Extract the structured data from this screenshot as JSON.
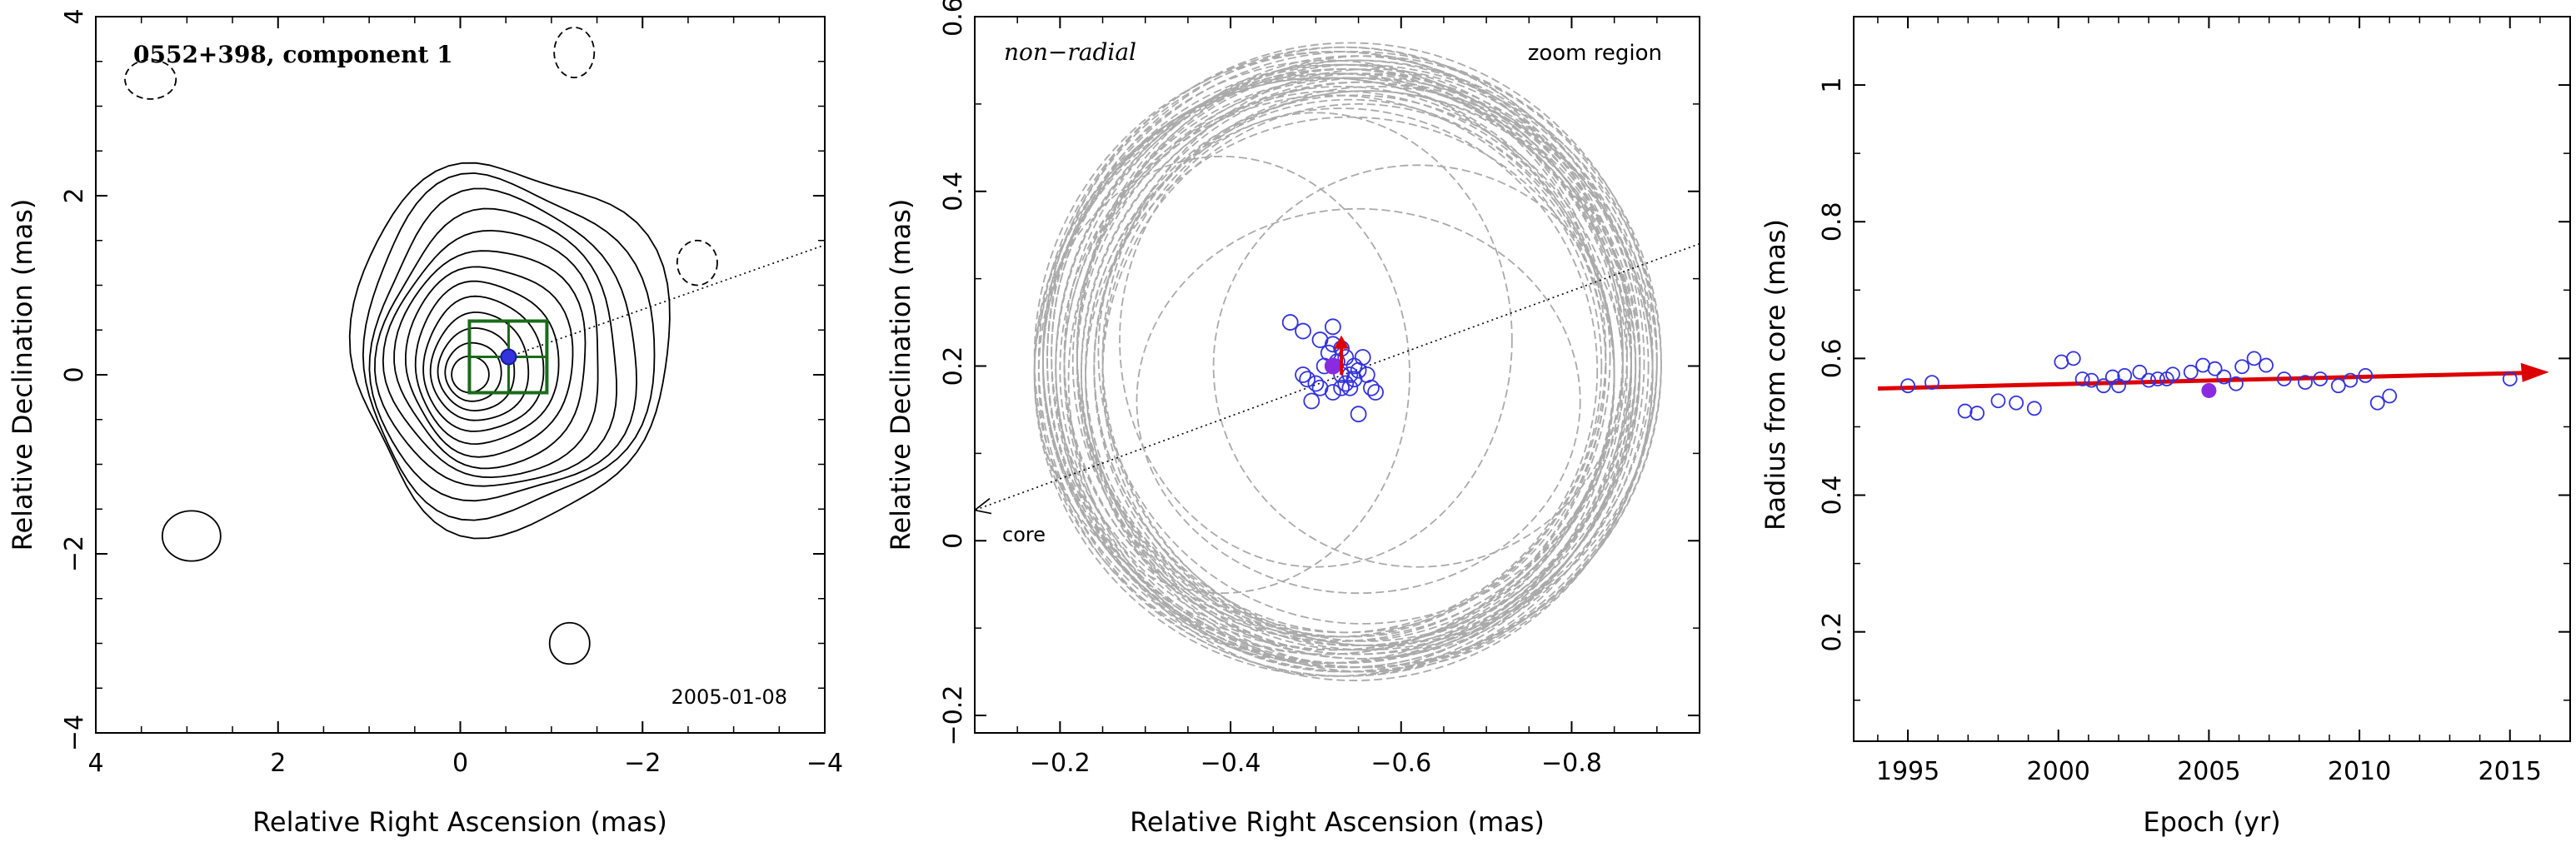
{
  "chart_data": [
    {
      "type": "contour",
      "title": "0552+398, component 1",
      "date": "2005-01-08",
      "xlabel": "Relative Right Ascension (mas)",
      "ylabel": "Relative Declination (mas)",
      "xlim": [
        4,
        -4
      ],
      "ylim": [
        -4,
        4
      ],
      "x_ticks": [
        4,
        2,
        0,
        -2,
        -4
      ],
      "y_ticks": [
        -4,
        -2,
        0,
        2,
        4
      ],
      "x_tick_labels": [
        "4",
        "2",
        "0",
        "−2",
        "−4"
      ],
      "y_tick_labels": [
        "−4",
        "−2",
        "0",
        "2",
        "4"
      ],
      "contour_center": [
        -0.1,
        0.0
      ],
      "contour_count": 13,
      "component_position": [
        -0.53,
        0.2
      ],
      "zoom_box": {
        "x": [
          -0.1,
          -0.95
        ],
        "y": [
          -0.2,
          0.6
        ]
      },
      "jet_direction_line": {
        "from": [
          -0.53,
          0.2
        ],
        "to": [
          -4.0,
          1.45
        ]
      },
      "negative_contours": [
        {
          "center": [
            3.4,
            3.3
          ],
          "r": [
            0.28,
            0.22
          ]
        },
        {
          "center": [
            -1.25,
            3.6
          ],
          "r": [
            0.22,
            0.28
          ]
        },
        {
          "center": [
            -2.6,
            1.25
          ],
          "r": [
            0.22,
            0.25
          ]
        }
      ],
      "positive_islands": [
        {
          "center": [
            2.95,
            -1.8
          ],
          "r": [
            0.32,
            0.28
          ]
        },
        {
          "center": [
            -1.2,
            -3.0
          ],
          "r": [
            0.22,
            0.23
          ]
        }
      ],
      "colors": {
        "contour": "#000000",
        "zoom_box": "#1a6b1a",
        "component": "#3333dd"
      }
    },
    {
      "type": "scatter",
      "annotation_left": "non−radial",
      "annotation_right": "zoom region",
      "core_label": "core",
      "xlabel": "Relative Right Ascension (mas)",
      "ylabel": "Relative Declination (mas)",
      "xlim": [
        -0.1,
        -0.95
      ],
      "ylim": [
        -0.22,
        0.6
      ],
      "x_ticks": [
        -0.2,
        -0.4,
        -0.6,
        -0.8
      ],
      "y_ticks": [
        -0.2,
        0,
        0.2,
        0.4,
        0.6
      ],
      "x_tick_labels": [
        "−0.2",
        "−0.4",
        "−0.6",
        "−0.8"
      ],
      "y_tick_labels": [
        "−0.2",
        "0",
        "0.2",
        "0.4",
        "0.6"
      ],
      "radial_line": {
        "from": [
          -0.95,
          0.34
        ],
        "to": [
          -0.1,
          0.035
        ]
      },
      "mean_position": [
        -0.52,
        0.2
      ],
      "velocity_vector": {
        "from": [
          -0.53,
          0.19
        ],
        "to": [
          -0.53,
          0.235
        ]
      },
      "positions": [
        [
          -0.47,
          0.25
        ],
        [
          -0.485,
          0.24
        ],
        [
          -0.505,
          0.23
        ],
        [
          -0.52,
          0.245
        ],
        [
          -0.52,
          0.225
        ],
        [
          -0.515,
          0.215
        ],
        [
          -0.53,
          0.22
        ],
        [
          -0.535,
          0.21
        ],
        [
          -0.555,
          0.21
        ],
        [
          -0.525,
          0.205
        ],
        [
          -0.53,
          0.19
        ],
        [
          -0.54,
          0.19
        ],
        [
          -0.545,
          0.185
        ],
        [
          -0.535,
          0.18
        ],
        [
          -0.52,
          0.2
        ],
        [
          -0.51,
          0.2
        ],
        [
          -0.49,
          0.185
        ],
        [
          -0.485,
          0.19
        ],
        [
          -0.5,
          0.18
        ],
        [
          -0.505,
          0.175
        ],
        [
          -0.495,
          0.16
        ],
        [
          -0.55,
          0.195
        ],
        [
          -0.56,
          0.19
        ],
        [
          -0.565,
          0.175
        ],
        [
          -0.57,
          0.17
        ],
        [
          -0.55,
          0.145
        ],
        [
          -0.52,
          0.17
        ],
        [
          -0.53,
          0.175
        ],
        [
          -0.545,
          0.2
        ],
        [
          -0.54,
          0.175
        ]
      ],
      "uncertainty_ellipses": [
        {
          "c": [
            -0.52,
            0.205
          ],
          "r": [
            0.34,
            0.33
          ]
        },
        {
          "c": [
            -0.53,
            0.2
          ],
          "r": [
            0.35,
            0.34
          ]
        },
        {
          "c": [
            -0.535,
            0.195
          ],
          "r": [
            0.33,
            0.335
          ]
        },
        {
          "c": [
            -0.545,
            0.19
          ],
          "r": [
            0.315,
            0.32
          ]
        },
        {
          "c": [
            -0.55,
            0.195
          ],
          "r": [
            0.325,
            0.33
          ]
        },
        {
          "c": [
            -0.525,
            0.21
          ],
          "r": [
            0.345,
            0.35
          ]
        },
        {
          "c": [
            -0.545,
            0.205
          ],
          "r": [
            0.36,
            0.355
          ]
        },
        {
          "c": [
            -0.56,
            0.2
          ],
          "r": [
            0.31,
            0.315
          ]
        },
        {
          "c": [
            -0.515,
            0.21
          ],
          "r": [
            0.33,
            0.34
          ]
        },
        {
          "c": [
            -0.54,
            0.215
          ],
          "r": [
            0.32,
            0.325
          ]
        },
        {
          "c": [
            -0.55,
            0.19
          ],
          "r": [
            0.3,
            0.31
          ]
        },
        {
          "c": [
            -0.535,
            0.2
          ],
          "r": [
            0.34,
            0.345
          ]
        },
        {
          "c": [
            -0.53,
            0.205
          ],
          "r": [
            0.355,
            0.36
          ]
        },
        {
          "c": [
            -0.56,
            0.195
          ],
          "r": [
            0.32,
            0.32
          ]
        },
        {
          "c": [
            -0.51,
            0.2
          ],
          "r": [
            0.33,
            0.33
          ]
        },
        {
          "c": [
            -0.54,
            0.185
          ],
          "r": [
            0.31,
            0.3
          ]
        },
        {
          "c": [
            -0.525,
            0.215
          ],
          "r": [
            0.335,
            0.33
          ]
        },
        {
          "c": [
            -0.565,
            0.21
          ],
          "r": [
            0.315,
            0.33
          ]
        },
        {
          "c": [
            -0.55,
            0.21
          ],
          "r": [
            0.345,
            0.34
          ]
        },
        {
          "c": [
            -0.52,
            0.19
          ],
          "r": [
            0.35,
            0.345
          ]
        },
        {
          "c": [
            -0.545,
            0.215
          ],
          "r": [
            0.325,
            0.34
          ]
        },
        {
          "c": [
            -0.535,
            0.19
          ],
          "r": [
            0.36,
            0.345
          ]
        },
        {
          "c": [
            -0.555,
            0.2
          ],
          "r": [
            0.335,
            0.335
          ]
        },
        {
          "c": [
            -0.53,
            0.215
          ],
          "r": [
            0.31,
            0.325
          ]
        },
        {
          "c": [
            -0.545,
            0.195
          ],
          "r": [
            0.35,
            0.355
          ]
        },
        {
          "c": [
            -0.52,
            0.2
          ],
          "r": [
            0.315,
            0.31
          ]
        },
        {
          "c": [
            -0.56,
            0.205
          ],
          "r": [
            0.34,
            0.35
          ]
        },
        {
          "c": [
            -0.54,
            0.2
          ],
          "r": [
            0.3,
            0.305
          ]
        },
        {
          "c": [
            -0.525,
            0.195
          ],
          "r": [
            0.325,
            0.32
          ]
        },
        {
          "c": [
            -0.55,
            0.2
          ],
          "r": [
            0.355,
            0.345
          ]
        },
        {
          "c": [
            -0.57,
            0.2
          ],
          "r": [
            0.33,
            0.32
          ]
        },
        {
          "c": [
            -0.535,
            0.21
          ],
          "r": [
            0.345,
            0.355
          ]
        },
        {
          "c": [
            -0.53,
            0.185
          ],
          "r": [
            0.32,
            0.335
          ]
        },
        {
          "c": [
            -0.555,
            0.215
          ],
          "r": [
            0.31,
            0.31
          ]
        },
        {
          "c": [
            -0.51,
            0.195
          ],
          "r": [
            0.34,
            0.335
          ]
        },
        {
          "c": [
            -0.545,
            0.205
          ],
          "r": [
            0.33,
            0.325
          ]
        },
        {
          "c": [
            -0.54,
            0.21
          ],
          "r": [
            0.36,
            0.36
          ]
        },
        {
          "c": [
            -0.56,
            0.19
          ],
          "r": [
            0.335,
            0.34
          ]
        },
        {
          "c": [
            -0.53,
            0.195
          ],
          "r": [
            0.3,
            0.3
          ]
        },
        {
          "c": [
            -0.52,
            0.21
          ],
          "r": [
            0.35,
            0.35
          ]
        },
        {
          "c": [
            -0.39,
            0.19
          ],
          "r": [
            0.22,
            0.25
          ]
        },
        {
          "c": [
            -0.62,
            0.2
          ],
          "r": [
            0.24,
            0.23
          ]
        },
        {
          "c": [
            -0.55,
            0.16
          ],
          "r": [
            0.26,
            0.22
          ]
        },
        {
          "c": [
            -0.5,
            0.23
          ],
          "r": [
            0.23,
            0.26
          ]
        }
      ],
      "colors": {
        "ellipse": "#aaaaaa",
        "points": "#3333dd",
        "mean": "#8a2be2",
        "vector": "#dd0000"
      }
    },
    {
      "type": "scatter",
      "xlabel": "Epoch (yr)",
      "ylabel": "Radius from core (mas)",
      "xlim": [
        1993.2,
        2017.0
      ],
      "ylim": [
        0.04,
        1.1
      ],
      "x_ticks": [
        1995,
        2000,
        2005,
        2010,
        2015
      ],
      "y_ticks": [
        0.2,
        0.4,
        0.6,
        0.8,
        1.0
      ],
      "x_tick_labels": [
        "1995",
        "2000",
        "2005",
        "2010",
        "2015"
      ],
      "y_tick_labels": [
        "0.2",
        "0.4",
        "0.6",
        "0.8",
        "1"
      ],
      "trend": {
        "x": [
          1994.0,
          2016.3
        ],
        "y": [
          0.556,
          0.58
        ]
      },
      "highlight_point": [
        2005.0,
        0.553
      ],
      "points": [
        [
          1995.0,
          0.56
        ],
        [
          1995.8,
          0.565
        ],
        [
          1996.9,
          0.523
        ],
        [
          1997.3,
          0.52
        ],
        [
          1998.0,
          0.538
        ],
        [
          1998.6,
          0.535
        ],
        [
          1999.2,
          0.527
        ],
        [
          2000.1,
          0.595
        ],
        [
          2000.5,
          0.6
        ],
        [
          2000.8,
          0.57
        ],
        [
          2001.1,
          0.568
        ],
        [
          2001.5,
          0.56
        ],
        [
          2001.8,
          0.573
        ],
        [
          2002.0,
          0.56
        ],
        [
          2002.2,
          0.575
        ],
        [
          2002.7,
          0.58
        ],
        [
          2003.0,
          0.568
        ],
        [
          2003.3,
          0.57
        ],
        [
          2003.6,
          0.57
        ],
        [
          2003.8,
          0.577
        ],
        [
          2004.4,
          0.58
        ],
        [
          2004.8,
          0.59
        ],
        [
          2005.2,
          0.585
        ],
        [
          2005.5,
          0.573
        ],
        [
          2005.9,
          0.563
        ],
        [
          2006.1,
          0.588
        ],
        [
          2006.5,
          0.6
        ],
        [
          2006.9,
          0.59
        ],
        [
          2007.5,
          0.57
        ],
        [
          2008.2,
          0.565
        ],
        [
          2008.7,
          0.57
        ],
        [
          2009.3,
          0.56
        ],
        [
          2009.7,
          0.568
        ],
        [
          2010.2,
          0.575
        ],
        [
          2010.6,
          0.535
        ],
        [
          2011.0,
          0.545
        ],
        [
          2015.0,
          0.57
        ]
      ],
      "colors": {
        "points": "#3333dd",
        "highlight": "#8a2be2",
        "trend": "#dd0000"
      }
    }
  ]
}
